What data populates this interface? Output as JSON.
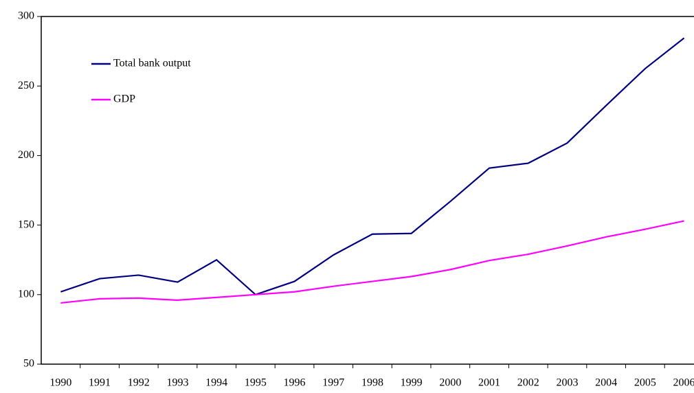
{
  "chart_data": {
    "type": "line",
    "categories": [
      "1990",
      "1991",
      "1992",
      "1993",
      "1994",
      "1995",
      "1996",
      "1997",
      "1998",
      "1999",
      "2000",
      "2001",
      "2002",
      "2003",
      "2004",
      "2005",
      "2006"
    ],
    "series": [
      {
        "name": "Total bank output",
        "color": "#000080",
        "values": [
          102,
          111.5,
          114,
          109,
          125,
          100,
          109.5,
          128.5,
          143.5,
          144,
          167,
          191,
          194.5,
          209,
          236,
          262.5,
          284.5
        ]
      },
      {
        "name": "GDP",
        "color": "#ff00ff",
        "values": [
          94,
          97,
          97.5,
          96,
          98,
          100,
          102,
          106,
          109.5,
          113,
          118,
          124.5,
          129,
          135,
          141.5,
          147,
          153
        ]
      }
    ],
    "ylim": [
      50,
      300
    ],
    "yticks": [
      50,
      100,
      150,
      200,
      250,
      300
    ],
    "grid": false,
    "legend": "top-left"
  }
}
